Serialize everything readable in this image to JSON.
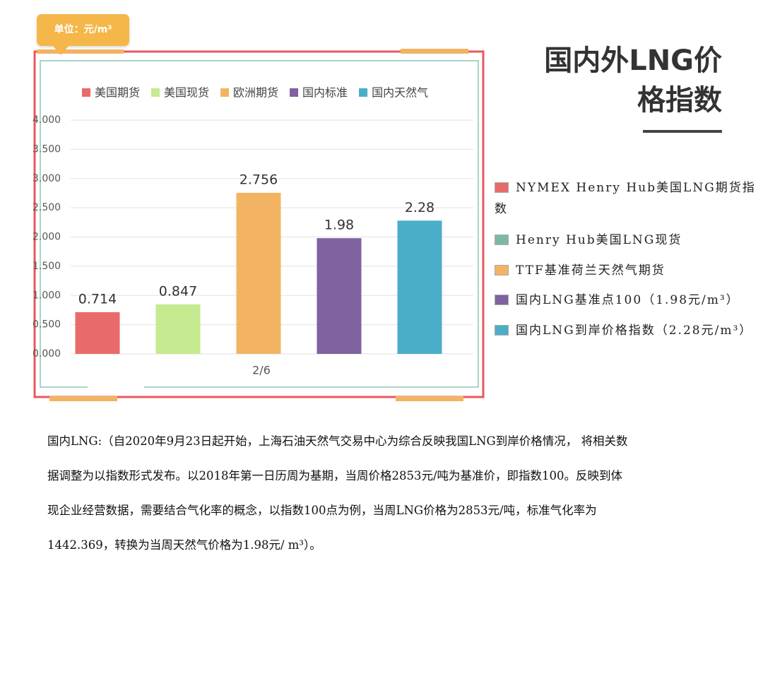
{
  "badge": "单位：元/m³",
  "heading": [
    "国内外LNG价",
    "格指数"
  ],
  "notes": [
    "NYMEX Henry Hub美国LNG期货指数",
    "Henry Hub美国LNG现货",
    "TTF基准荷兰天然气期货",
    "国内LNG基准点100（1.98元/m³）",
    "国内LNG到岸价格指数（2.28元/m³）"
  ],
  "paragraph": [
    "国内LNG:（自2020年9月23日起开始，上海石油天然气交易中心为综合反映我国LNG到岸价格情况， 将相关数",
    "据调整为以指数形式发布。以2018年第一日历周为基期，当周价格2853元/吨为基准价，即指数100。反映到体",
    "现企业经营数据，需要结合气化率的概念，以指数100点为例，当周LNG价格为2853元/吨，标准气化率为",
    "1442.369，转换为当周天然气价格为1.98元/ m³）。"
  ],
  "chart_data": {
    "type": "bar",
    "categories": [
      "2/6"
    ],
    "series": [
      {
        "name": "美国期货",
        "color": "#e96a6a",
        "values": [
          0.714
        ]
      },
      {
        "name": "美国现货",
        "color": "#c5ea8f",
        "values": [
          0.847
        ]
      },
      {
        "name": "欧洲期货",
        "color": "#f2b462",
        "values": [
          2.756
        ]
      },
      {
        "name": "国内标准",
        "color": "#7f62a0",
        "values": [
          1.98
        ]
      },
      {
        "name": "国内天然气",
        "color": "#4aaec8",
        "values": [
          2.28
        ]
      }
    ],
    "ylim": [
      0,
      4
    ],
    "yticks": [
      {
        "value": 0,
        "label": "0.000"
      },
      {
        "value": 0.5,
        "label": "0.500"
      },
      {
        "value": 1,
        "label": "1.000"
      },
      {
        "value": 1.5,
        "label": "1.500"
      },
      {
        "value": 2,
        "label": "2.000"
      },
      {
        "value": 2.5,
        "label": "2.500"
      },
      {
        "value": 3,
        "label": "3.000"
      },
      {
        "value": 3.5,
        "label": "3.500"
      },
      {
        "value": 4,
        "label": "4.000"
      }
    ],
    "grid": true,
    "legend": "top"
  }
}
